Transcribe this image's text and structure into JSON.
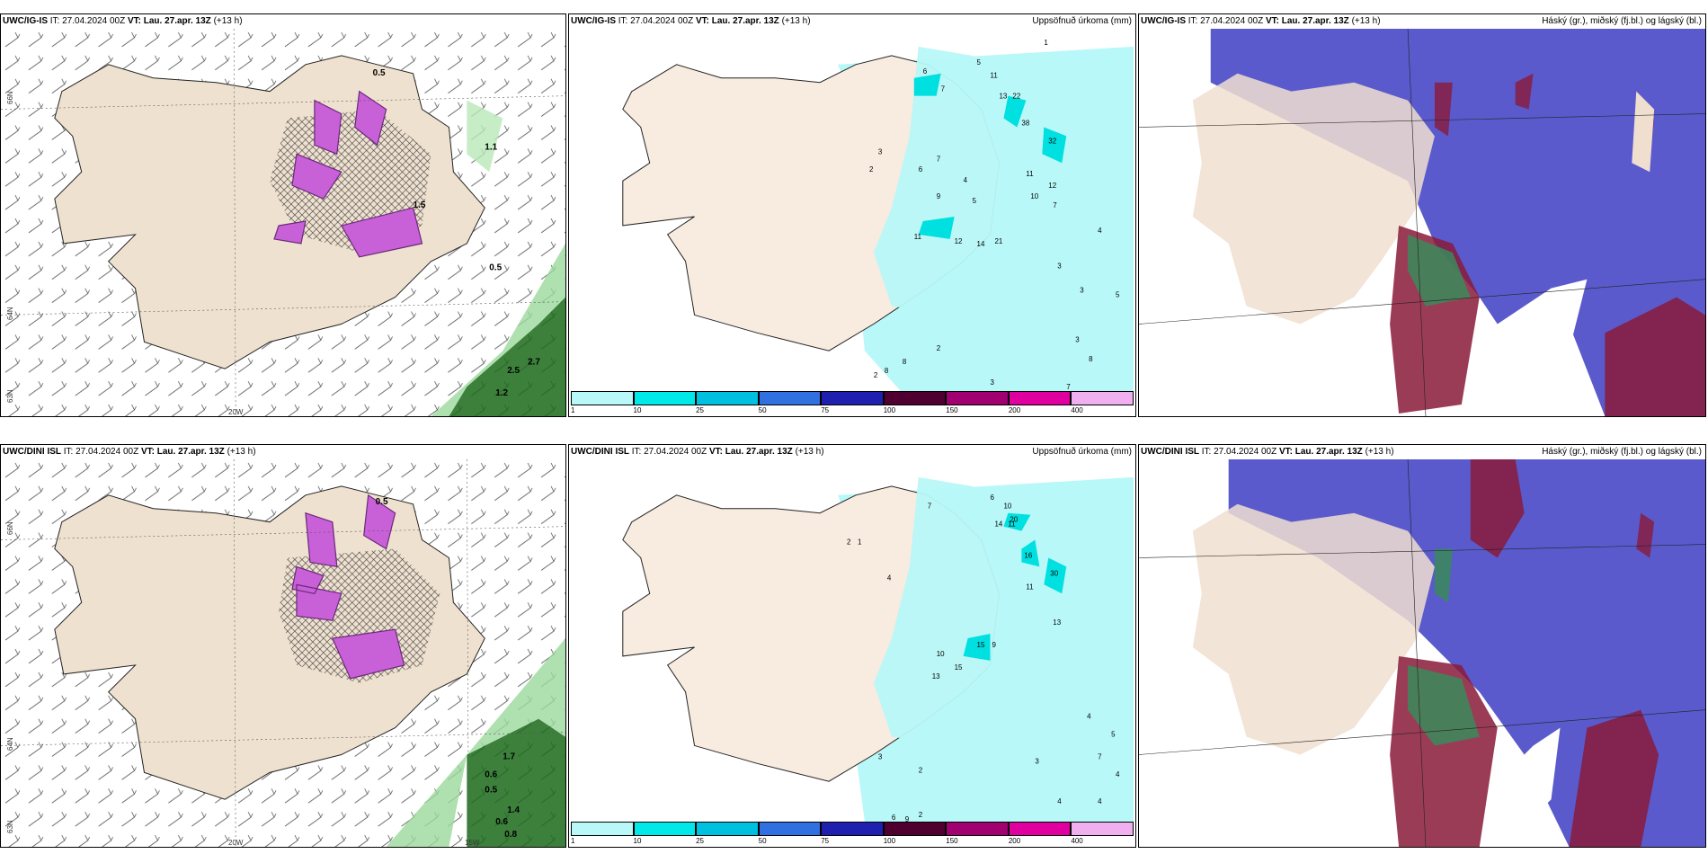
{
  "rows": [
    {
      "model": "UWC/IG-IS",
      "it": "IT: 27.04.2024 00Z",
      "vt_label": "VT:",
      "vt": "Lau. 27.apr. 13Z",
      "lead": "(+13 h)"
    },
    {
      "model": "UWC/DINI ISL",
      "it": "IT: 27.04.2024 00Z",
      "vt_label": "VT:",
      "vt": "Lau. 27.apr. 13Z",
      "lead": "(+13 h)"
    }
  ],
  "precip_title": "Uppsöfnuð úrkoma (mm)",
  "cloud_title": "Háský (gr.), miðský (fj.bl.) og lágský (bl.)",
  "axes": {
    "lat66": "66N",
    "lat64": "64N",
    "lat63": "63N",
    "lon20": "20W",
    "lon15": "15W"
  },
  "colorbar": {
    "ticks": [
      "1",
      "10",
      "25",
      "50",
      "75",
      "100",
      "150",
      "200",
      "400"
    ],
    "colors": [
      "#b8f8f8",
      "#00e8e8",
      "#00c0e0",
      "#3070e0",
      "#2020b0",
      "#500030",
      "#a00070",
      "#e000a0",
      "#f0b0f0"
    ]
  },
  "precip_labels_top": [
    "1",
    "5",
    "6",
    "7",
    "11",
    "13",
    "22",
    "38",
    "32",
    "7",
    "2",
    "3",
    "6",
    "4",
    "11",
    "12",
    "10",
    "5",
    "9",
    "7",
    "11",
    "12",
    "14",
    "21",
    "3",
    "2",
    "2",
    "8",
    "8",
    "3",
    "3",
    "5",
    "4",
    "3",
    "8",
    "7"
  ],
  "precip_labels_bottom": [
    "6",
    "10",
    "7",
    "11",
    "14",
    "20",
    "16",
    "30",
    "2",
    "1",
    "4",
    "13",
    "11",
    "15",
    "10",
    "15",
    "13",
    "9",
    "2",
    "3",
    "4",
    "5",
    "7",
    "4",
    "2",
    "6",
    "9",
    "3",
    "4",
    "4"
  ],
  "wx_labels_top": [
    "0.5",
    "1.1",
    "0.5",
    "1.5",
    "2.5",
    "2.7",
    "1.2"
  ],
  "wx_labels_bottom": [
    "0.5",
    "0.6",
    "0.5",
    "1.7",
    "1.4",
    "0.6",
    "0.8"
  ]
}
